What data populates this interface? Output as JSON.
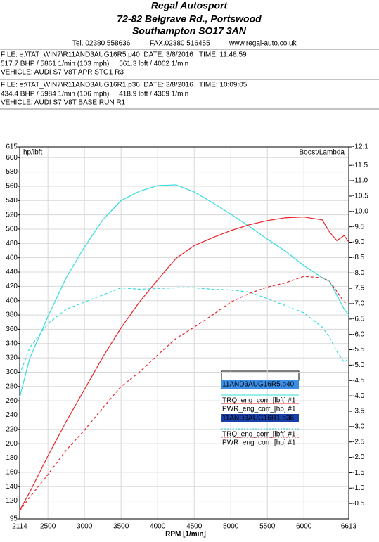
{
  "header": {
    "company": "Regal Autosport",
    "address1": "72-82 Belgrave Rd., Portswood",
    "address2": "Southampton SO17 3AN",
    "tel": "Tel. 02380 558636",
    "fax": "FAX.02380 516455",
    "web": "www.regal-auto.co.uk"
  },
  "files": [
    {
      "line1": "FILE: e:\\TAT_WIN7\\R11AND3AUG16R5.p40  DATE: 3/8/2016   TIME: 11:48:59",
      "line2": "517.7 BHP / 5861 1/min (103 mph)     561.3 lbft / 4002 1/min",
      "line3": "VEHICLE: AUDI S7 V8T APR STG1 R3"
    },
    {
      "line1": "FILE: e:\\TAT_WIN7\\R11AND3AUG16R1.p36  DATE: 3/8/2016   TIME: 10:09:05",
      "line2": "434.4 BHP / 5984 1/min (106 mph)     418.9 lbft / 4369 1/min",
      "line3": "VEHICLE: AUDI S7 V8T BASE RUN R1"
    }
  ],
  "chart_data": {
    "type": "line",
    "y_label": "hp/lbft",
    "y2_label": "Boost/Lambda",
    "x_label": "RPM  [1/min]",
    "grid": true,
    "x": [
      2114,
      2250,
      2500,
      2750,
      3000,
      3250,
      3500,
      3750,
      4000,
      4250,
      4500,
      4750,
      5000,
      5250,
      5500,
      5750,
      6000,
      6250,
      6350,
      6450,
      6550,
      6613
    ],
    "xlim": [
      2114,
      6613
    ],
    "xticks": [
      2114,
      2500,
      3000,
      3500,
      4000,
      4500,
      5000,
      5500,
      6000,
      6613
    ],
    "ylim": [
      95,
      615
    ],
    "yticks": [
      95,
      120,
      140,
      160,
      180,
      200,
      220,
      240,
      260,
      280,
      300,
      320,
      340,
      360,
      380,
      400,
      420,
      440,
      460,
      480,
      500,
      520,
      540,
      560,
      580,
      600,
      615
    ],
    "y2lim": [
      0,
      -12.1
    ],
    "y2ticks": [
      -12.1,
      -11.5,
      {
        "value": -11,
        "label": "-11.0"
      },
      -10.5,
      {
        "value": -10,
        "label": "-10.0"
      },
      -9.5,
      {
        "value": -9,
        "label": "-9.0"
      },
      -8.5,
      {
        "value": -8,
        "label": "-8.0"
      },
      -7.5,
      {
        "value": -7,
        "label": "-7.0"
      },
      -6.5,
      {
        "value": -6,
        "label": "-6.0"
      },
      -5.5,
      {
        "value": -5,
        "label": "-5.0"
      },
      -4.5,
      {
        "value": -4,
        "label": "-4.0"
      },
      -3.5,
      {
        "value": -3,
        "label": "-3.0"
      },
      -2.5,
      {
        "value": -2,
        "label": "-2.0"
      },
      -1.5,
      {
        "value": -1,
        "label": "-1.0"
      },
      -0.5
    ],
    "runs": [
      {
        "name": "11AND3AUG16R5.p40",
        "highlight": "#3a8ee6",
        "series": [
          {
            "name": "TRQ_eng_corr_[lbft] #1",
            "color": "#33dddd",
            "dash": false,
            "values": [
              265,
              319,
              378,
              432,
              475,
              513,
              540,
              553,
              561,
              562,
              552,
              537,
              521,
              504,
              486,
              469,
              449,
              432,
              427,
              408,
              388,
              380
            ]
          },
          {
            "name": "PWR_eng_corr_[hp] #1",
            "color": "#e8242a",
            "dash": false,
            "values": [
              107,
              132,
              183,
              231,
              276,
              321,
              362,
              398,
              429,
              459,
              477,
              488,
              498,
              506,
              512,
              516,
              517,
              513,
              496,
              484,
              491,
              482
            ]
          }
        ]
      },
      {
        "name": "11AND3AUG16R1.p36",
        "highlight": "#1a3fa8",
        "series": [
          {
            "name": "TRQ_eng_corr_[lbft] #1",
            "color": "#33dddd",
            "dash": true,
            "values": [
              297,
              334,
              368,
              388,
              398,
              408,
              418,
              416,
              417,
              418,
              418,
              416,
              415,
              412,
              403,
              393,
              383,
              363,
              349,
              329,
              314,
              319
            ]
          },
          {
            "name": "PWR_eng_corr_[hp] #1",
            "color": "#e8242a",
            "dash": true,
            "values": [
              106,
              125,
              157,
              191,
              219,
              250,
              280,
              300,
              324,
              347,
              363,
              380,
              398,
              410,
              419,
              425,
              434,
              432,
              427,
              413,
              398,
              398
            ]
          }
        ]
      }
    ]
  }
}
